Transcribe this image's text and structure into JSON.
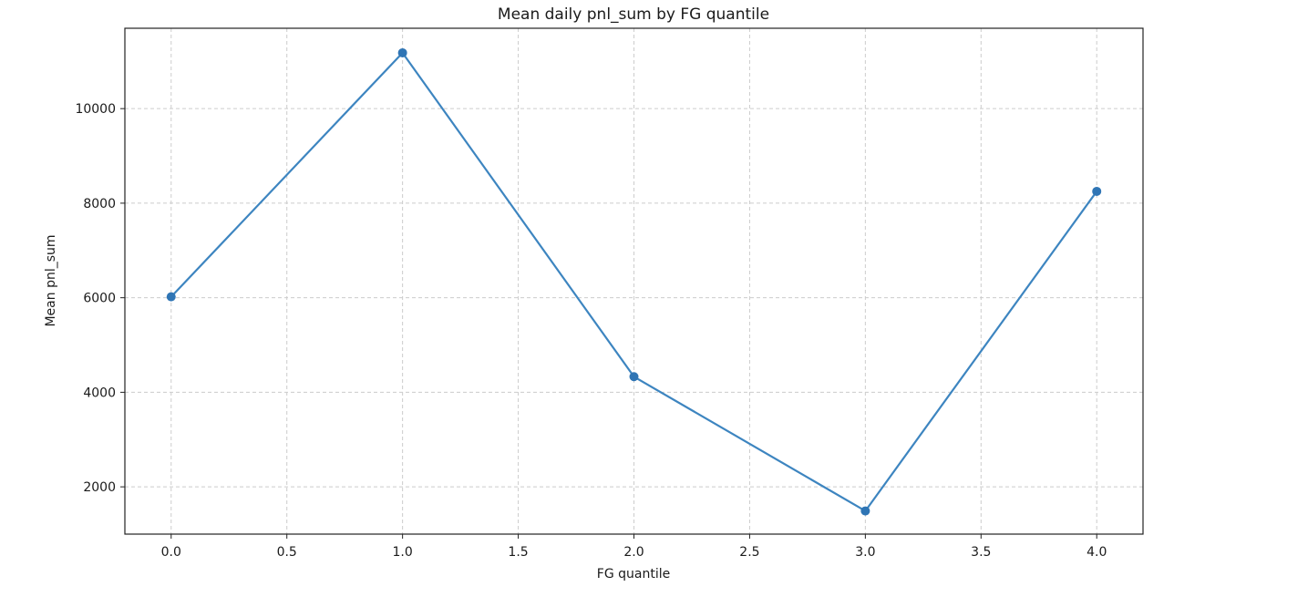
{
  "chart_data": {
    "type": "line",
    "title": "Mean daily pnl_sum by FG quantile",
    "xlabel": "FG quantile",
    "ylabel": "Mean pnl_sum",
    "xlim": [
      -0.2,
      4.2
    ],
    "ylim": [
      1000,
      11700
    ],
    "xticks": [
      0.0,
      0.5,
      1.0,
      1.5,
      2.0,
      2.5,
      3.0,
      3.5,
      4.0
    ],
    "xtick_labels": [
      "0.0",
      "0.5",
      "1.0",
      "1.5",
      "2.0",
      "2.5",
      "3.0",
      "3.5",
      "4.0"
    ],
    "yticks": [
      2000,
      4000,
      6000,
      8000,
      10000
    ],
    "ytick_labels": [
      "2000",
      "4000",
      "6000",
      "8000",
      "10000"
    ],
    "grid": true,
    "grid_style": "dashed",
    "series": [
      {
        "color": "#3d85c0",
        "marker_color": "#2f75b5",
        "x": [
          0,
          1,
          2,
          3,
          4
        ],
        "y": [
          6020,
          11180,
          4330,
          1490,
          8250
        ]
      }
    ]
  }
}
